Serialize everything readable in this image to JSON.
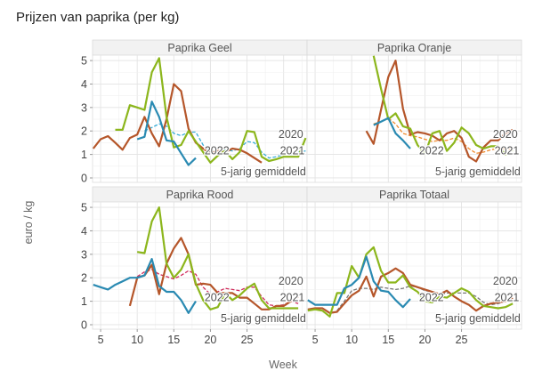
{
  "title": "Prijzen van paprika (per kg)",
  "chart_data": {
    "type": "line",
    "title": "Prijzen van paprika (per kg)",
    "xlabel": "Week",
    "ylabel": "euro / kg",
    "xlim": [
      3.9,
      33.2
    ],
    "ylim": [
      -0.19,
      5.23
    ],
    "xticks": [
      5,
      10,
      15,
      20,
      25
    ],
    "yticks": [
      0,
      1,
      2,
      3,
      4,
      5
    ],
    "grid": true,
    "colors": {
      "2020": "#b5562a",
      "2021": "#8cb61c",
      "2022": "#2a8ab2"
    },
    "series_labels": {
      "s2020": "2020",
      "s2021": "2021",
      "s2022": "2022",
      "avg": "5-jarig gemiddeld"
    },
    "panels": [
      {
        "name": "Paprika Geel",
        "avg_color": "#3aaed8",
        "s2020": {
          "weeks": [
            4,
            5,
            6,
            7,
            8,
            9,
            10,
            11,
            12,
            13,
            14,
            15,
            16,
            17,
            18,
            19,
            20,
            21,
            22,
            23,
            24,
            25,
            26,
            27
          ],
          "values": [
            1.25,
            1.65,
            1.78,
            1.5,
            1.2,
            1.7,
            1.85,
            2.6,
            1.9,
            1.35,
            2.5,
            4.0,
            3.7,
            2.1,
            1.5,
            1.25,
            1.05,
            1.15,
            1.1,
            1.25,
            1.2,
            1.05,
            0.85,
            0.65
          ]
        },
        "s2021": {
          "weeks": [
            7,
            8,
            9,
            10,
            11,
            12,
            13,
            14,
            15,
            16,
            17,
            18,
            19,
            20,
            21,
            22,
            23,
            24,
            25,
            26,
            27,
            28,
            29,
            30,
            31,
            32,
            33
          ],
          "values": [
            2.05,
            2.05,
            3.1,
            3.0,
            2.9,
            4.5,
            5.1,
            2.6,
            1.3,
            1.4,
            2.0,
            1.55,
            1.1,
            0.65,
            0.95,
            1.15,
            0.8,
            1.1,
            2.0,
            1.95,
            0.9,
            0.72,
            0.8,
            0.9,
            0.9,
            0.9,
            1.7
          ]
        },
        "s2022": {
          "weeks": [
            10,
            11,
            12,
            13,
            14,
            15,
            16,
            17,
            18
          ],
          "values": [
            1.65,
            1.75,
            3.25,
            2.6,
            1.6,
            1.55,
            1.05,
            0.55,
            0.85
          ]
        },
        "avg": {
          "weeks": [
            11,
            12,
            13,
            14,
            15,
            16,
            17,
            18,
            19,
            20,
            21,
            22,
            23,
            24,
            25,
            26,
            27,
            28,
            29,
            30,
            31,
            32,
            33
          ],
          "values": [
            2.0,
            2.15,
            2.3,
            2.2,
            1.9,
            1.8,
            1.95,
            1.95,
            1.4,
            1.1,
            1.15,
            1.2,
            1.15,
            1.25,
            1.55,
            1.5,
            1.1,
            0.85,
            0.9,
            1.0,
            1.0,
            1.1,
            1.15
          ]
        }
      },
      {
        "name": "Paprika Oranje",
        "avg_color": "#f08a2c",
        "s2020": {
          "weeks": [
            12,
            13,
            14,
            15,
            16,
            17,
            18,
            19,
            20,
            21,
            22,
            23,
            24,
            25,
            26,
            27,
            28,
            29,
            30,
            31,
            32
          ],
          "values": [
            2.0,
            1.45,
            2.9,
            4.3,
            5.0,
            2.95,
            1.85,
            1.95,
            1.9,
            1.8,
            1.6,
            1.9,
            2.0,
            1.7,
            0.9,
            0.7,
            1.3,
            1.6,
            1.6,
            1.9,
            2.05
          ]
        },
        "s2021": {
          "weeks": [
            13,
            14,
            15,
            16,
            17,
            18,
            19,
            20,
            21,
            22,
            23,
            24,
            25,
            26,
            27,
            28,
            29,
            30,
            31,
            32
          ],
          "values": [
            5.2,
            3.8,
            2.5,
            2.75,
            2.2,
            2.1,
            1.4,
            1.0,
            1.9,
            2.0,
            1.15,
            1.5,
            2.15,
            1.9,
            1.4,
            1.25,
            1.35,
            1.35,
            1.0,
            1.2
          ]
        },
        "s2022": {
          "weeks": [
            13,
            14,
            15,
            16,
            17,
            18
          ],
          "values": [
            2.25,
            2.4,
            2.55,
            1.9,
            1.6,
            1.25
          ]
        },
        "avg": {
          "weeks": [
            13,
            14,
            15,
            16,
            17,
            18,
            19,
            20,
            21,
            22,
            23,
            24,
            25,
            26,
            27,
            28,
            29,
            30,
            31,
            32
          ],
          "values": [
            2.3,
            2.4,
            2.55,
            2.3,
            1.9,
            1.8,
            1.75,
            1.65,
            1.55,
            1.6,
            1.6,
            1.7,
            1.55,
            1.25,
            1.05,
            1.1,
            1.2,
            1.25,
            1.25,
            1.2
          ]
        }
      },
      {
        "name": "Paprika Rood",
        "avg_color": "#d02a5a",
        "s2020": {
          "weeks": [
            9,
            10,
            11,
            12,
            13,
            14,
            15,
            16,
            17,
            18,
            19,
            20,
            21,
            22,
            23,
            24,
            25,
            26,
            27,
            28,
            29,
            30,
            31,
            32
          ],
          "values": [
            0.8,
            2.0,
            2.1,
            2.55,
            1.3,
            2.6,
            3.25,
            3.7,
            3.0,
            1.7,
            1.75,
            1.7,
            1.35,
            1.35,
            1.35,
            1.15,
            1.15,
            0.9,
            0.65,
            0.65,
            0.8,
            0.8,
            1.0,
            1.2
          ]
        },
        "s2021": {
          "weeks": [
            10,
            11,
            12,
            13,
            14,
            15,
            16,
            17,
            18,
            19,
            20,
            21,
            22,
            23,
            24,
            25,
            26,
            27,
            28,
            29,
            30,
            31,
            32
          ],
          "values": [
            3.1,
            3.05,
            4.4,
            5.0,
            2.6,
            2.0,
            2.35,
            3.0,
            1.75,
            1.05,
            0.65,
            0.75,
            1.35,
            1.05,
            1.25,
            1.55,
            1.75,
            1.05,
            0.7,
            0.7,
            0.7,
            0.7,
            0.7
          ]
        },
        "s2022": {
          "weeks": [
            4,
            5,
            6,
            7,
            8,
            9,
            10,
            11,
            12,
            13,
            14,
            15,
            16,
            17,
            18
          ],
          "values": [
            1.7,
            1.6,
            1.5,
            1.7,
            1.85,
            2.0,
            2.0,
            2.1,
            2.8,
            1.65,
            1.4,
            1.4,
            1.05,
            0.5,
            1.0
          ]
        },
        "avg": {
          "weeks": [
            10,
            11,
            12,
            13,
            14,
            15,
            16,
            17,
            18,
            19,
            20,
            21,
            22,
            23,
            24,
            25,
            26,
            27,
            28,
            29,
            30,
            31,
            32
          ],
          "values": [
            2.05,
            2.25,
            2.35,
            2.15,
            2.05,
            1.95,
            2.1,
            2.3,
            2.15,
            1.6,
            1.3,
            1.4,
            1.55,
            1.5,
            1.45,
            1.6,
            1.6,
            1.2,
            0.85,
            0.8,
            0.85,
            1.0,
            0.9
          ]
        }
      },
      {
        "name": "Paprika Totaal",
        "avg_color": "#777777",
        "s2020": {
          "weeks": [
            4,
            5,
            6,
            7,
            8,
            9,
            10,
            11,
            12,
            13,
            14,
            15,
            16,
            17,
            18,
            19,
            20,
            21,
            22,
            23,
            24,
            25,
            26,
            27,
            28,
            29,
            30,
            31,
            32
          ],
          "values": [
            0.65,
            0.7,
            0.7,
            0.5,
            0.55,
            0.9,
            1.25,
            1.45,
            2.05,
            1.2,
            2.05,
            2.2,
            2.4,
            2.2,
            1.7,
            1.6,
            1.5,
            1.4,
            1.3,
            1.45,
            1.2,
            1.0,
            0.85,
            0.6,
            0.8,
            0.9,
            0.95,
            1.0,
            1.15
          ]
        },
        "s2021": {
          "weeks": [
            4,
            5,
            6,
            7,
            8,
            9,
            10,
            11,
            12,
            13,
            14,
            15,
            16,
            17,
            18,
            19,
            20,
            21,
            22,
            23,
            24,
            25,
            26,
            27,
            28,
            29,
            30,
            31,
            32
          ],
          "values": [
            0.6,
            0.65,
            0.6,
            0.35,
            1.35,
            1.35,
            2.5,
            2.0,
            3.0,
            3.3,
            2.3,
            1.8,
            1.8,
            2.1,
            1.6,
            1.4,
            1.0,
            0.95,
            1.2,
            1.15,
            1.35,
            1.55,
            1.4,
            1.05,
            0.8,
            0.75,
            0.7,
            0.75,
            0.9
          ]
        },
        "s2022": {
          "weeks": [
            4,
            5,
            6,
            7,
            8,
            9,
            10,
            11,
            12,
            13,
            14,
            15,
            16,
            17,
            18
          ],
          "values": [
            1.05,
            0.85,
            0.85,
            0.85,
            0.85,
            1.55,
            1.7,
            2.0,
            2.9,
            1.85,
            1.45,
            1.4,
            1.05,
            0.75,
            1.1
          ]
        },
        "avg": {
          "weeks": [
            8,
            9,
            10,
            11,
            12,
            13,
            14,
            15,
            16,
            17,
            18,
            19,
            20,
            21,
            22,
            23,
            24,
            25,
            26,
            27,
            28,
            29,
            30,
            31,
            32
          ],
          "values": [
            0.6,
            1.0,
            1.45,
            1.55,
            1.55,
            1.5,
            1.6,
            1.55,
            1.5,
            1.55,
            1.65,
            1.6,
            1.45,
            1.4,
            1.3,
            1.35,
            1.35,
            1.35,
            1.35,
            1.2,
            0.95,
            0.85,
            0.9,
            1.0,
            1.0
          ]
        }
      }
    ]
  }
}
